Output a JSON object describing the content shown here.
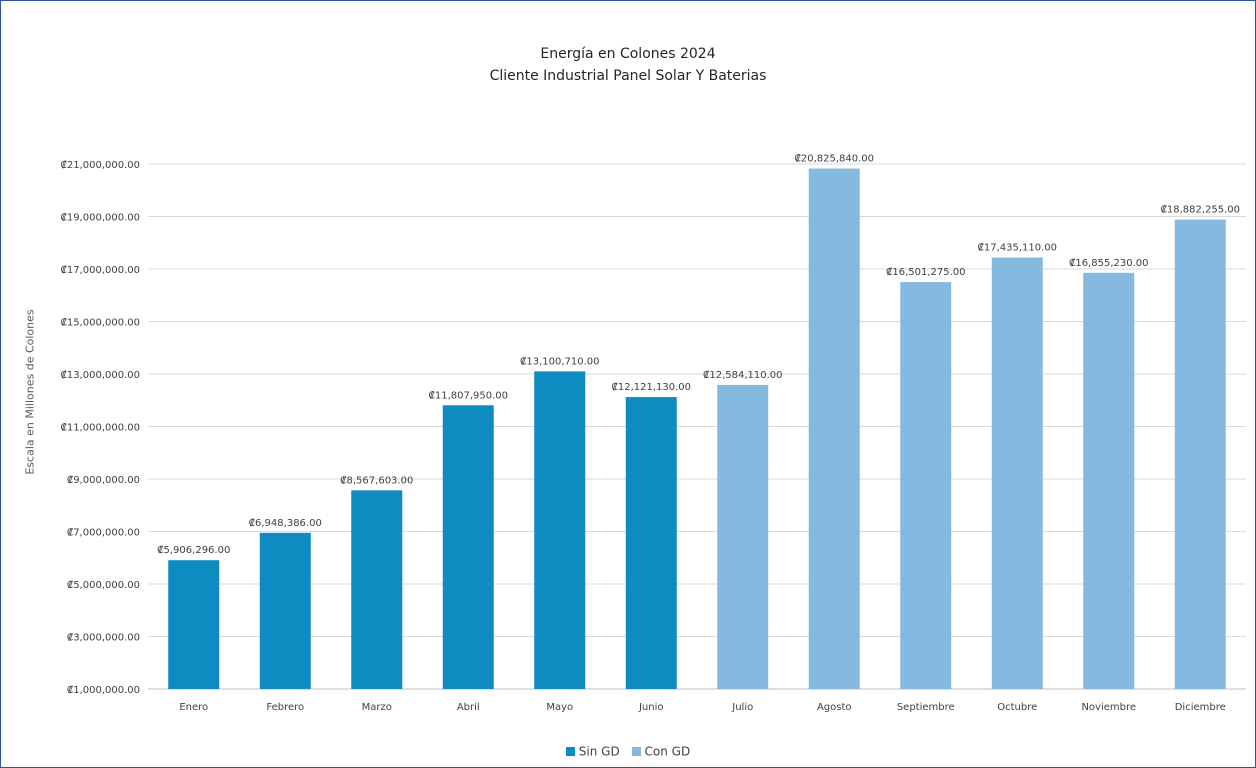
{
  "chart_data": {
    "type": "bar",
    "title": "Energía en Colones 2024",
    "subtitle": "Cliente Industrial Panel Solar Y Baterias",
    "xlabel": "",
    "ylabel": "Escala en Millones de Colones",
    "ylim": [
      1000000,
      21000000
    ],
    "yticks": [
      "₡1,000,000.00",
      "₡3,000,000.00",
      "₡5,000,000.00",
      "₡7,000,000.00",
      "₡9,000,000.00",
      "₡11,000,000.00",
      "₡13,000,000.00",
      "₡15,000,000.00",
      "₡17,000,000.00",
      "₡19,000,000.00",
      "₡21,000,000.00"
    ],
    "categories": [
      "Enero",
      "Febrero",
      "Marzo",
      "Abril",
      "Mayo",
      "Junio",
      "Julio",
      "Agosto",
      "Septiembre",
      "Octubre",
      "Noviembre",
      "Diciembre"
    ],
    "grid": true,
    "legend_position": "bottom",
    "series": [
      {
        "name": "Sin GD",
        "color": "#0e8bc1",
        "values": [
          5906296,
          6948386,
          8567603,
          11807950,
          13100710,
          12121130,
          null,
          null,
          null,
          null,
          null,
          null
        ],
        "labels": [
          "₡5,906,296.00",
          "₡6,948,386.00",
          "₡8,567,603.00",
          "₡11,807,950.00",
          "₡13,100,710.00",
          "₡12,121,130.00",
          "",
          "",
          "",
          "",
          "",
          ""
        ]
      },
      {
        "name": "Con GD",
        "color": "#85b9e0",
        "values": [
          null,
          null,
          null,
          null,
          null,
          null,
          12584110,
          20825840,
          16501275,
          17435110,
          16855230,
          18882255
        ],
        "labels": [
          "",
          "",
          "",
          "",
          "",
          "",
          "₡12,584,110.00",
          "₡20,825,840.00",
          "₡16,501,275.00",
          "₡17,435,110.00",
          "₡16,855,230.00",
          "₡18,882,255.00"
        ]
      }
    ]
  },
  "colors": {
    "frame_border": "#2f5597",
    "gridline": "#d9d9d9",
    "axis_text": "#404040"
  }
}
